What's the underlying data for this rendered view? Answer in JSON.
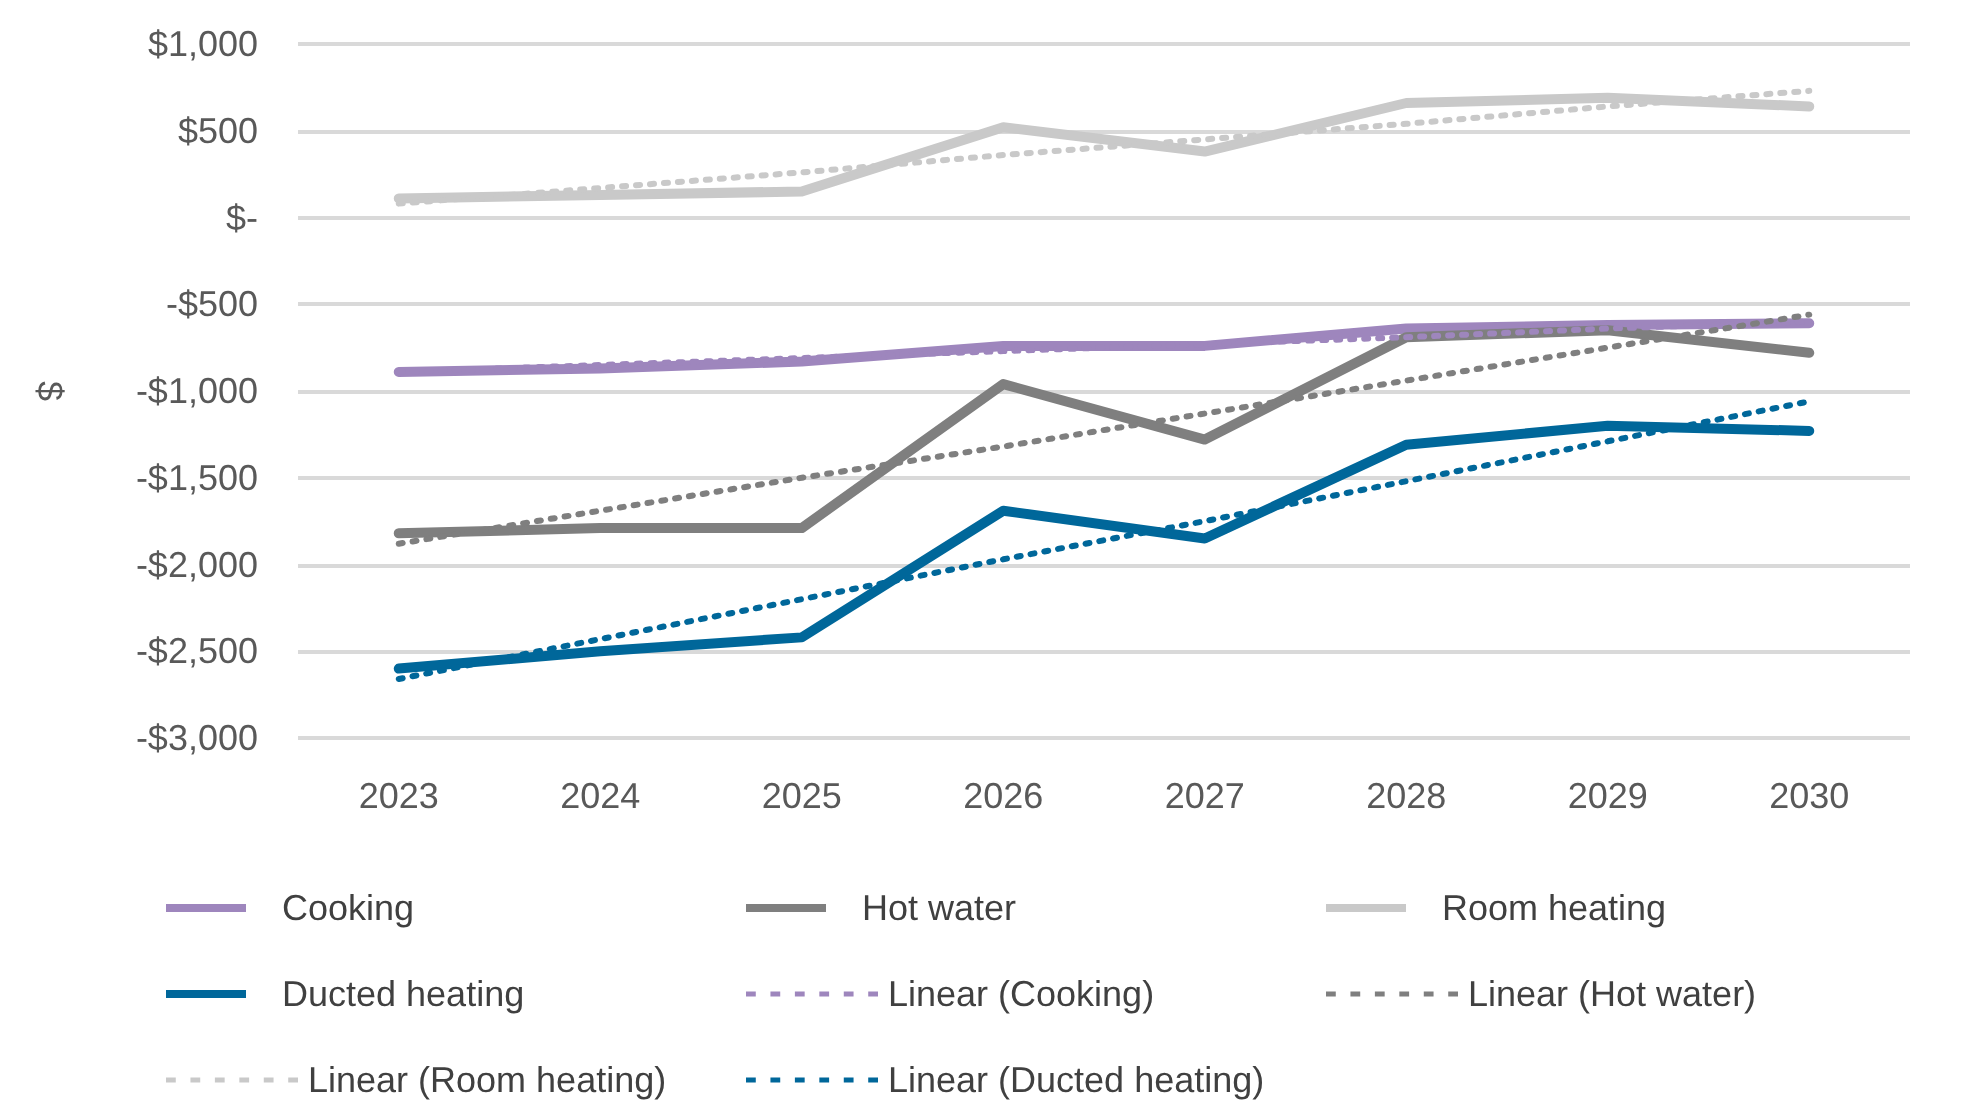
{
  "chart_data": {
    "type": "line",
    "ylabel": "$",
    "categories": [
      "2023",
      "2024",
      "2025",
      "2026",
      "2027",
      "2028",
      "2029",
      "2030"
    ],
    "ylim": [
      -3000,
      1000
    ],
    "yticks": [
      {
        "value": -3000,
        "label": "-$3,000"
      },
      {
        "value": -2500,
        "label": "-$2,500"
      },
      {
        "value": -2000,
        "label": "-$2,000"
      },
      {
        "value": -1500,
        "label": "-$1,500"
      },
      {
        "value": -1000,
        "label": "-$1,000"
      },
      {
        "value": -500,
        "label": "-$500"
      },
      {
        "value": 0,
        "label": "$-"
      },
      {
        "value": 500,
        "label": "$500"
      },
      {
        "value": 1000,
        "label": "$1,000"
      }
    ],
    "grid": "y",
    "legend": "bottom",
    "marker": "none",
    "line_style": "solid",
    "series": [
      {
        "name": "Cooking",
        "color": "#9e86bd",
        "values": [
          -890,
          -870,
          -830,
          -740,
          -740,
          -640,
          -620,
          -610
        ]
      },
      {
        "name": "Hot water",
        "color": "#7f7f7f",
        "values": [
          -1820,
          -1790,
          -1790,
          -960,
          -1280,
          -690,
          -650,
          -780
        ]
      },
      {
        "name": "Room heating",
        "color": "#c9c9c9",
        "values": [
          110,
          130,
          150,
          520,
          380,
          660,
          690,
          640
        ]
      },
      {
        "name": "Ducted heating",
        "color": "#00679a",
        "values": [
          -2600,
          -2500,
          -2420,
          -1690,
          -1850,
          -1310,
          -1200,
          -1230
        ]
      },
      {
        "name": "Linear (Cooking)",
        "color": "#9e86bd",
        "line_style": "dotted",
        "values": [
          -890,
          -850,
          -810,
          -770,
          -730,
          -690,
          -640,
          -600
        ]
      },
      {
        "name": "Linear (Hot water)",
        "color": "#7f7f7f",
        "line_style": "dotted",
        "values": [
          -1880,
          -1690,
          -1500,
          -1320,
          -1130,
          -940,
          -750,
          -560
        ]
      },
      {
        "name": "Linear (Room heating)",
        "color": "#c9c9c9",
        "line_style": "dotted",
        "values": [
          80,
          170,
          260,
          360,
          450,
          540,
          640,
          730
        ]
      },
      {
        "name": "Linear (Ducted heating)",
        "color": "#00679a",
        "line_style": "dotted",
        "values": [
          -2660,
          -2430,
          -2200,
          -1970,
          -1750,
          -1520,
          -1290,
          -1060
        ]
      }
    ]
  }
}
